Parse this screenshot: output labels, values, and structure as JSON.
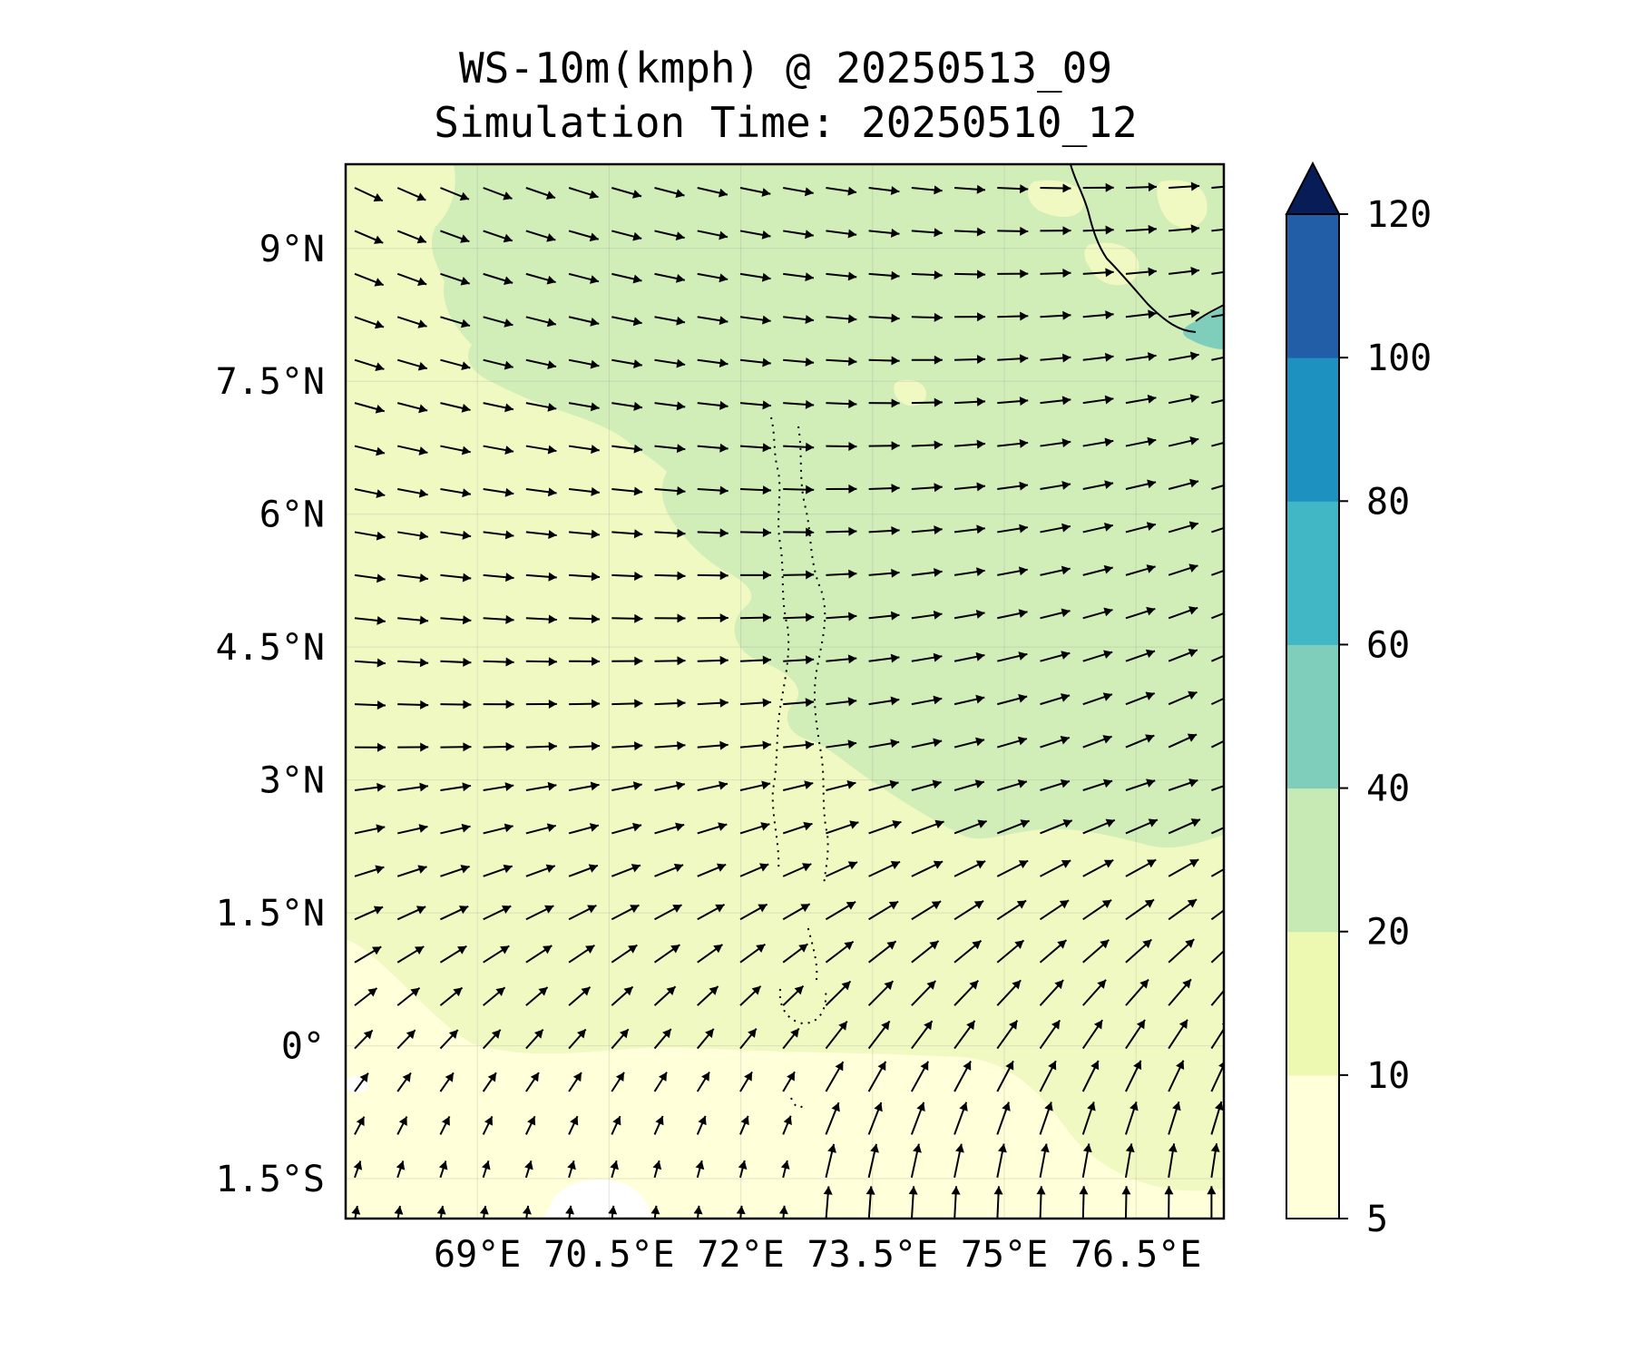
{
  "title": "WS-10m(kmph) @ 20250513_09",
  "subtitle": "Simulation Time: 20250510_12",
  "map": {
    "lon_range": [
      67.5,
      77.5
    ],
    "lat_range": [
      -1.95,
      9.95
    ],
    "x_ticks": [
      {
        "value": 69.0,
        "label": "69°E"
      },
      {
        "value": 70.5,
        "label": "70.5°E"
      },
      {
        "value": 72.0,
        "label": "72°E"
      },
      {
        "value": 73.5,
        "label": "73.5°E"
      },
      {
        "value": 75.0,
        "label": "75°E"
      },
      {
        "value": 76.5,
        "label": "76.5°E"
      }
    ],
    "y_ticks": [
      {
        "value": 9.0,
        "label": "9°N"
      },
      {
        "value": 7.5,
        "label": "7.5°N"
      },
      {
        "value": 6.0,
        "label": "6°N"
      },
      {
        "value": 4.5,
        "label": "4.5°N"
      },
      {
        "value": 3.0,
        "label": "3°N"
      },
      {
        "value": 1.5,
        "label": "1.5°N"
      },
      {
        "value": 0.0,
        "label": "0°"
      },
      {
        "value": -1.5,
        "label": "1.5°S"
      }
    ],
    "gridlines": true
  },
  "colorbar": {
    "levels": [
      5,
      10,
      20,
      40,
      60,
      80,
      100,
      120
    ],
    "tick_labels": [
      "5",
      "10",
      "20",
      "40",
      "60",
      "80",
      "100",
      "120"
    ],
    "colors": [
      "#ffffd9",
      "#edf8b1",
      "#c7e9b4",
      "#7fcdbb",
      "#41b6c4",
      "#1d91c0",
      "#225ea8",
      "#0c2c84"
    ],
    "extend": "max",
    "extend_color": "#081d58"
  },
  "field_colors": {
    "lt10": "#ffffd9",
    "10to20": "#f1f9c3",
    "20to40": "#d1edb8",
    "40to60": "#7fcdbb"
  }
}
